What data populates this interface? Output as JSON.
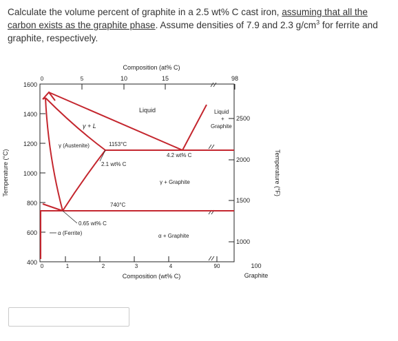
{
  "question": {
    "part1": "Calculate the volume percent of graphite in a 2.5 wt% C cast iron, ",
    "underlined": "assuming that all the carbon exists as the graphite phase",
    "part2": ". Assume densities of 7.9 and 2.3 g/cm",
    "sup": "3",
    "part3": " for ferrite and graphite, respectively."
  },
  "diagram": {
    "top_axis_title": "Composition (at% C)",
    "bottom_axis_title": "Composition (wt% C)",
    "left_axis_title": "Temperature (°C)",
    "right_axis_title": "Temperature (°F)",
    "top_ticks": [
      "0",
      "5",
      "10",
      "15",
      "98"
    ],
    "bottom_ticks": [
      "0",
      "1",
      "2",
      "3",
      "4",
      "90",
      "100"
    ],
    "bottom_end_label": "Graphite",
    "left_ticks": [
      "1600",
      "1400",
      "1200",
      "1000",
      "800",
      "600",
      "400"
    ],
    "right_ticks": [
      "2500",
      "2000",
      "1500",
      "1000"
    ],
    "labels": {
      "liquid": "Liquid",
      "liquid_graphite_1": "Liquid",
      "liquid_graphite_2": "+",
      "liquid_graphite_3": "Graphite",
      "gamma_L": "γ + L",
      "austenite": "γ (Austenite)",
      "eutectic_temp": "1153°C",
      "eutectic_comp": "4.2 wt% C",
      "gamma_max": "2.1 wt% C",
      "gamma_graphite": "γ + Graphite",
      "eutectoid_temp": "740°C",
      "eutectoid_comp": "0.65 wt% C",
      "ferrite": "α (Ferrite)",
      "alpha_graphite": "α + Graphite"
    }
  },
  "answer": {
    "value": "",
    "placeholder": ""
  }
}
